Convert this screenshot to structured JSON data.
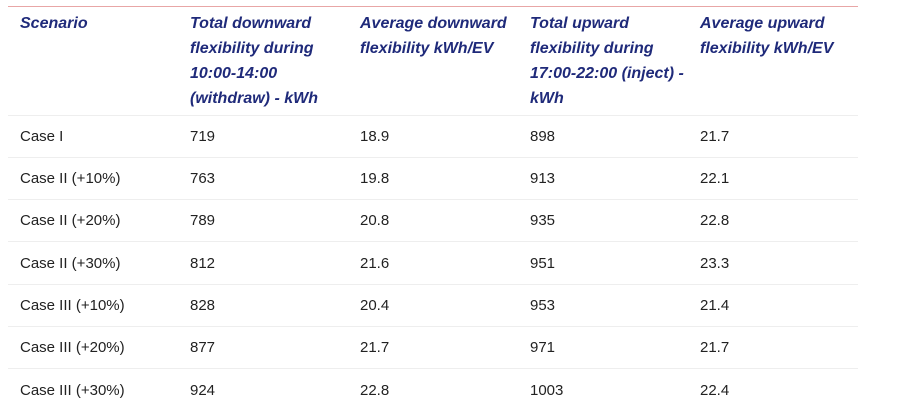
{
  "table": {
    "headers": [
      "Scenario",
      "Total downward flexibility during 10:00-14:00 (withdraw) - kWh",
      "Average downward flexibility kWh/EV",
      "Total upward flexibility during 17:00-22:00 (inject) -kWh",
      "Average upward flexibility kWh/EV"
    ],
    "rows": [
      [
        "Case I",
        "719",
        "18.9",
        "898",
        "21.7"
      ],
      [
        "Case II (+10%)",
        "763",
        "19.8",
        "913",
        "22.1"
      ],
      [
        "Case II (+20%)",
        "789",
        "20.8",
        "935",
        "22.8"
      ],
      [
        "Case II (+30%)",
        "812",
        "21.6",
        "951",
        "23.3"
      ],
      [
        "Case III (+10%)",
        "828",
        "20.4",
        "953",
        "21.4"
      ],
      [
        "Case III (+20%)",
        "877",
        "21.7",
        "971",
        "21.7"
      ],
      [
        "Case III (+30%)",
        "924",
        "22.8",
        "1003",
        "22.4"
      ]
    ]
  },
  "colors": {
    "header_text": "#1f2a7a",
    "body_text": "#222222",
    "top_rule": "#e8a6a6",
    "row_divider": "#eeeeee"
  }
}
